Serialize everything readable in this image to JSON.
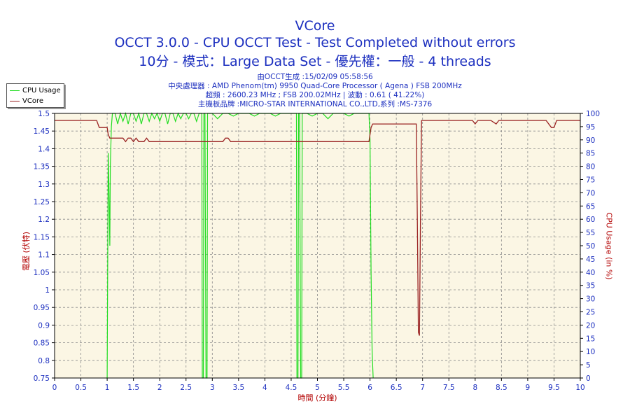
{
  "header": {
    "title": "VCore",
    "subtitle1": "OCCT 3.0.0 - CPU OCCT Test - Test Completed without errors",
    "subtitle2": "10分 - 模式：Large Data Set - 優先權：一般 - 4 threads"
  },
  "info": {
    "line1": "由OCCT生成 :15/02/09 05:58:56",
    "line2": "中央處理器 : AMD Phenom(tm) 9950 Quad-Core Processor ( Agena ) FSB 200MHz",
    "line3": "超頻 : 2600.23 MHz ; FSB 200.02MHz | 波動 : 0.61 ( 41.22%)",
    "line4": "主機板品牌 :MICRO-STAR INTERNATIONAL CO.,LTD,系列 :MS-7376"
  },
  "colors": {
    "plot_bg": "#fbf6e4",
    "cpu_usage": "#22dd22",
    "vcore": "#9a2222",
    "axis_text": "#1c2fbf",
    "axis_label": "#b20000"
  },
  "chart_data": {
    "type": "line",
    "xlabel": "時間 (分鐘)",
    "ylabel_left": "電壓 (伏特)",
    "ylabel_right": "CPU Usage (in %)",
    "xlim": [
      0,
      10
    ],
    "ylim_left": [
      0.75,
      1.5
    ],
    "ylim_right": [
      0,
      100
    ],
    "x_ticks": [
      "0",
      "0.5",
      "1",
      "1.5",
      "2",
      "2.5",
      "3",
      "3.5",
      "4",
      "4.5",
      "5",
      "5.5",
      "6",
      "6.5",
      "7",
      "7.5",
      "8",
      "8.5",
      "9",
      "9.5",
      "10"
    ],
    "y_ticks_left": [
      "0.75",
      "0.8",
      "0.85",
      "0.9",
      "0.95",
      "1",
      "1.05",
      "1.1",
      "1.15",
      "1.2",
      "1.25",
      "1.3",
      "1.35",
      "1.4",
      "1.45",
      "1.5"
    ],
    "y_ticks_right": [
      "0",
      "5",
      "10",
      "15",
      "20",
      "25",
      "30",
      "35",
      "40",
      "45",
      "50",
      "55",
      "60",
      "65",
      "70",
      "75",
      "80",
      "85",
      "90",
      "95",
      "100"
    ],
    "grid": true,
    "legend_position": "top-left",
    "series": [
      {
        "name": "CPU Usage",
        "axis": "right",
        "x": [
          0.98,
          1.0,
          1.02,
          1.03,
          1.05,
          1.06,
          1.08,
          1.1,
          1.15,
          1.2,
          1.25,
          1.3,
          1.35,
          1.4,
          1.45,
          1.5,
          1.55,
          1.6,
          1.65,
          1.7,
          1.75,
          1.8,
          1.85,
          1.9,
          1.95,
          2.0,
          2.05,
          2.1,
          2.15,
          2.2,
          2.25,
          2.3,
          2.35,
          2.4,
          2.45,
          2.5,
          2.55,
          2.6,
          2.65,
          2.7,
          2.75,
          2.8,
          2.81,
          2.83,
          2.84,
          2.86,
          2.88,
          2.9,
          2.91,
          2.95,
          3.0,
          3.1,
          3.2,
          3.3,
          3.4,
          3.5,
          3.6,
          3.7,
          3.8,
          3.9,
          4.0,
          4.1,
          4.2,
          4.3,
          4.4,
          4.5,
          4.6,
          4.61,
          4.63,
          4.64,
          4.66,
          4.68,
          4.7,
          4.71,
          4.75,
          4.8,
          4.9,
          5.0,
          5.1,
          5.2,
          5.3,
          5.4,
          5.5,
          5.6,
          5.7,
          5.8,
          5.9,
          5.98,
          6.0,
          6.02,
          6.04,
          6.06
        ],
        "y": [
          0,
          0,
          85,
          75,
          50,
          80,
          95,
          100,
          100,
          96,
          100,
          97,
          100,
          96,
          100,
          100,
          97,
          100,
          96,
          100,
          100,
          97,
          100,
          98,
          100,
          97,
          100,
          100,
          96,
          100,
          100,
          97,
          100,
          98,
          100,
          100,
          98,
          100,
          100,
          97,
          100,
          100,
          0,
          0,
          100,
          100,
          0,
          0,
          100,
          100,
          100,
          98,
          100,
          100,
          99,
          100,
          100,
          100,
          99,
          100,
          100,
          100,
          99,
          100,
          100,
          100,
          100,
          0,
          0,
          100,
          100,
          0,
          0,
          100,
          100,
          100,
          99,
          100,
          100,
          98,
          100,
          100,
          100,
          99,
          100,
          100,
          100,
          100,
          90,
          40,
          10,
          0
        ]
      },
      {
        "name": "VCore",
        "axis": "left",
        "x": [
          0,
          0.5,
          0.8,
          0.85,
          1.0,
          1.02,
          1.05,
          1.1,
          1.15,
          1.2,
          1.3,
          1.35,
          1.4,
          1.45,
          1.5,
          1.55,
          1.6,
          1.65,
          1.7,
          1.75,
          1.8,
          1.85,
          1.9,
          2.0,
          2.2,
          2.4,
          2.6,
          2.8,
          3.0,
          3.2,
          3.25,
          3.3,
          3.35,
          3.4,
          3.6,
          3.8,
          4.0,
          4.5,
          5.0,
          5.5,
          5.9,
          5.98,
          6.02,
          6.05,
          6.1,
          6.3,
          6.5,
          6.7,
          6.88,
          6.9,
          6.92,
          6.94,
          6.96,
          6.98,
          7.0,
          7.3,
          7.5,
          7.8,
          7.95,
          8.0,
          8.05,
          8.3,
          8.4,
          8.45,
          8.5,
          8.55,
          8.6,
          8.9,
          9.0,
          9.2,
          9.35,
          9.45,
          9.5,
          9.55,
          9.7,
          10.0
        ],
        "y": [
          1.48,
          1.48,
          1.48,
          1.46,
          1.46,
          1.44,
          1.43,
          1.43,
          1.43,
          1.43,
          1.43,
          1.42,
          1.43,
          1.43,
          1.42,
          1.43,
          1.42,
          1.42,
          1.42,
          1.43,
          1.42,
          1.42,
          1.42,
          1.42,
          1.42,
          1.42,
          1.42,
          1.42,
          1.42,
          1.42,
          1.43,
          1.43,
          1.42,
          1.42,
          1.42,
          1.42,
          1.42,
          1.42,
          1.42,
          1.42,
          1.42,
          1.42,
          1.46,
          1.47,
          1.47,
          1.47,
          1.47,
          1.47,
          1.47,
          1.2,
          0.88,
          0.87,
          1.2,
          1.48,
          1.48,
          1.48,
          1.48,
          1.48,
          1.48,
          1.47,
          1.48,
          1.48,
          1.47,
          1.48,
          1.48,
          1.48,
          1.48,
          1.48,
          1.48,
          1.48,
          1.48,
          1.46,
          1.46,
          1.48,
          1.48,
          1.48
        ]
      }
    ]
  }
}
